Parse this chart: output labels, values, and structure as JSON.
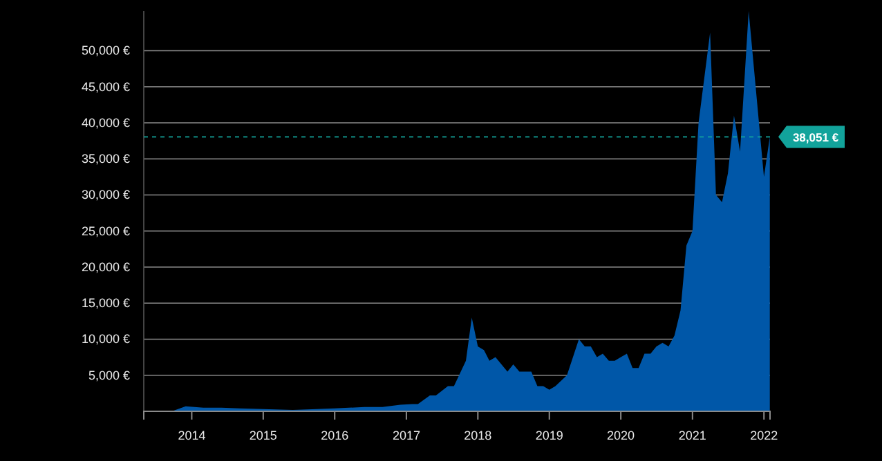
{
  "chart_data": {
    "type": "area",
    "x": [
      "2013-05",
      "2013-10",
      "2013-12",
      "2014-03",
      "2014-06",
      "2014-09",
      "2015-01",
      "2015-06",
      "2015-10",
      "2016-01",
      "2016-06",
      "2016-09",
      "2016-12",
      "2017-02",
      "2017-03",
      "2017-05",
      "2017-06",
      "2017-08",
      "2017-09",
      "2017-11",
      "2017-12",
      "2018-01",
      "2018-02",
      "2018-03",
      "2018-04",
      "2018-06",
      "2018-07",
      "2018-08",
      "2018-10",
      "2018-11",
      "2018-12",
      "2019-01",
      "2019-02",
      "2019-04",
      "2019-06",
      "2019-07",
      "2019-08",
      "2019-09",
      "2019-10",
      "2019-11",
      "2019-12",
      "2020-01",
      "2020-02",
      "2020-03",
      "2020-04",
      "2020-05",
      "2020-06",
      "2020-07",
      "2020-08",
      "2020-09",
      "2020-10",
      "2020-11",
      "2020-12",
      "2021-01",
      "2021-02",
      "2021-04",
      "2021-05",
      "2021-06",
      "2021-07",
      "2021-08",
      "2021-09",
      "2021-10-15",
      "2022-01",
      "2022-01-31"
    ],
    "series": [
      {
        "color": "#0057a8",
        "values": [
          100,
          100,
          700,
          500,
          500,
          400,
          300,
          200,
          300,
          400,
          600,
          600,
          900,
          1000,
          1000,
          2200,
          2200,
          3500,
          3500,
          7000,
          13000,
          9000,
          8500,
          7000,
          7500,
          5500,
          6500,
          5500,
          5500,
          3500,
          3500,
          3000,
          3500,
          5000,
          10000,
          9000,
          9000,
          7500,
          8000,
          7000,
          7000,
          7500,
          8000,
          6000,
          6000,
          8000,
          8000,
          9000,
          9500,
          9000,
          10500,
          14000,
          23000,
          25000,
          40000,
          52500,
          30000,
          29000,
          33000,
          41000,
          36000,
          55500,
          32500,
          38051
        ]
      }
    ],
    "xlim": [
      "2013-05",
      "2022-02"
    ],
    "xticks": [
      "2014",
      "2015",
      "2016",
      "2017",
      "2018",
      "2019",
      "2020",
      "2021",
      "2022"
    ],
    "ylim": [
      0,
      55500
    ],
    "yticks": [
      {
        "value": 5000,
        "label": "5,000 €"
      },
      {
        "value": 10000,
        "label": "10,000 €"
      },
      {
        "value": 15000,
        "label": "15,000 €"
      },
      {
        "value": 20000,
        "label": "20,000 €"
      },
      {
        "value": 25000,
        "label": "25,000 €"
      },
      {
        "value": 30000,
        "label": "30,000 €"
      },
      {
        "value": 35000,
        "label": "35,000 €"
      },
      {
        "value": 40000,
        "label": "40,000 €"
      },
      {
        "value": 45000,
        "label": "45,000 €"
      },
      {
        "value": 50000,
        "label": "50,000 €"
      }
    ],
    "grid": "y",
    "ref_lines": [
      {
        "axis": "y",
        "value": 38051,
        "label": "38,051 €",
        "color": "#12a39b",
        "line_style": "dashed"
      }
    ]
  }
}
